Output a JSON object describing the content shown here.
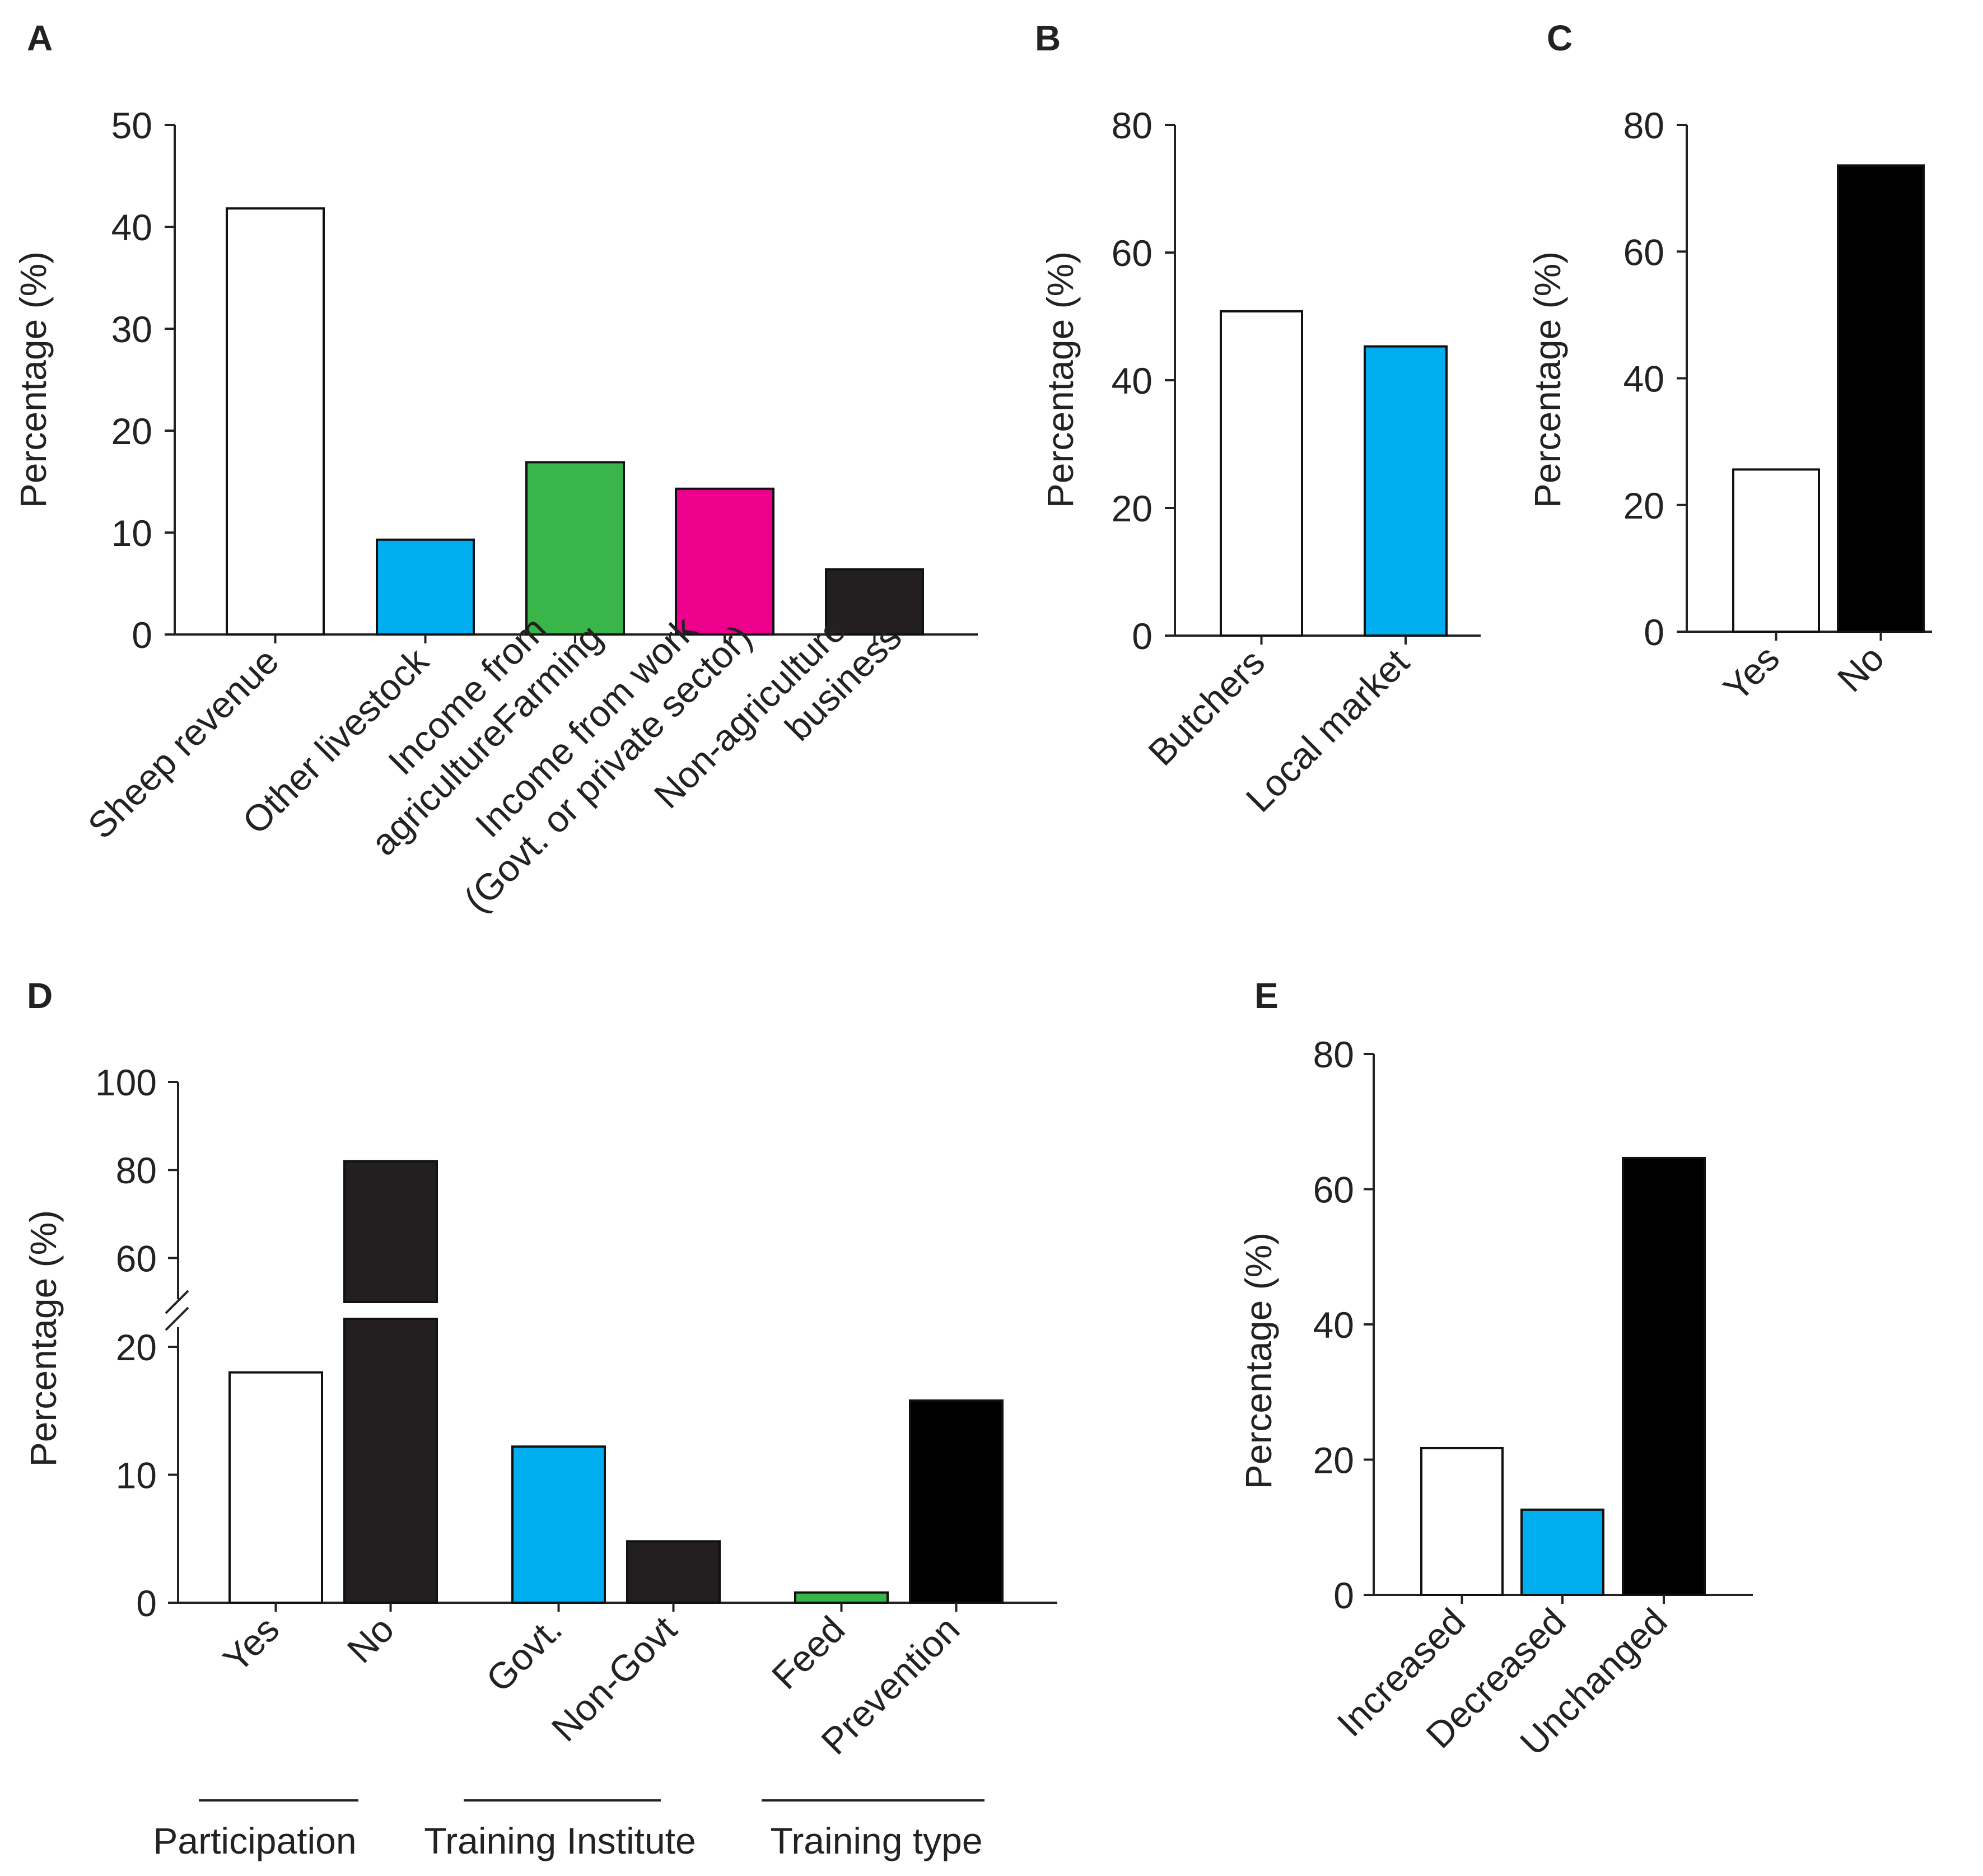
{
  "chart_data": [
    {
      "panel": "A",
      "type": "bar",
      "ylabel": "Percentage (%)",
      "ylim": [
        0,
        50
      ],
      "yticks": [
        0,
        10,
        20,
        30,
        40,
        50
      ],
      "categories": [
        [
          "Sheep revenue"
        ],
        [
          "Other livestock"
        ],
        [
          "Income from",
          "agricultureFarming"
        ],
        [
          "Income from work",
          "(Govt. or private sector)"
        ],
        [
          "Non-agriculture",
          "business"
        ]
      ],
      "values": [
        41.8,
        9.3,
        16.9,
        14.3,
        6.4
      ],
      "colors": [
        "#ffffff",
        "#00aeef",
        "#39b54a",
        "#ec008c",
        "#231f20"
      ]
    },
    {
      "panel": "B",
      "type": "bar",
      "ylabel": "Percentage (%)",
      "ylim": [
        0,
        80
      ],
      "yticks": [
        0,
        20,
        40,
        60,
        80
      ],
      "categories": [
        [
          "Butchers"
        ],
        [
          "Local market"
        ]
      ],
      "values": [
        50.8,
        45.3
      ],
      "colors": [
        "#ffffff",
        "#00aeef"
      ]
    },
    {
      "panel": "C",
      "type": "bar",
      "ylabel": "Percentage (%)",
      "ylim": [
        0,
        80
      ],
      "yticks": [
        0,
        20,
        40,
        60,
        80
      ],
      "categories": [
        [
          "Yes"
        ],
        [
          "No"
        ]
      ],
      "values": [
        25.6,
        73.6
      ],
      "colors": [
        "#ffffff",
        "#000000"
      ]
    },
    {
      "panel": "D",
      "type": "bar",
      "ylabel": "Percentage (%)",
      "broken_axis": {
        "lower_range": [
          0,
          20
        ],
        "upper_range": [
          50,
          100
        ]
      },
      "yticks": [
        0,
        10,
        20,
        60,
        80,
        100
      ],
      "categories": [
        [
          "Yes"
        ],
        [
          "No"
        ],
        [
          "Govt."
        ],
        [
          "Non-Govt"
        ],
        [
          "Feed"
        ],
        [
          "Prevention"
        ]
      ],
      "values": [
        18.0,
        82.0,
        12.2,
        4.8,
        0.8,
        15.8
      ],
      "colors": [
        "#ffffff",
        "#231f20",
        "#00aeef",
        "#231f20",
        "#39b54a",
        "#000000"
      ],
      "groups": [
        {
          "label": "Participation",
          "members": [
            0,
            1
          ]
        },
        {
          "label": "Training Institute",
          "members": [
            2,
            3
          ]
        },
        {
          "label": "Training type",
          "members": [
            4,
            5
          ]
        }
      ]
    },
    {
      "panel": "E",
      "type": "bar",
      "ylabel": "Percentage (%)",
      "ylim": [
        0,
        80
      ],
      "yticks": [
        0,
        20,
        40,
        60,
        80
      ],
      "categories": [
        [
          "Increased"
        ],
        [
          "Decreased"
        ],
        [
          "Unchanged"
        ]
      ],
      "values": [
        21.7,
        12.6,
        64.6
      ],
      "colors": [
        "#ffffff",
        "#00aeef",
        "#000000"
      ]
    }
  ]
}
